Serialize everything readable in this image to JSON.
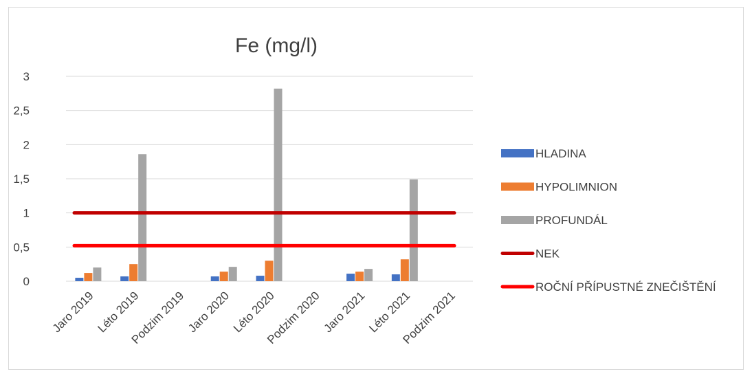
{
  "chart_data": {
    "type": "bar",
    "title": "Fe (mg/l)",
    "categories": [
      "Jaro 2019",
      "Léto 2019",
      "Podzim 2019",
      "Jaro 2020",
      "Léto 2020",
      "Podzim 2020",
      "Jaro 2021",
      "Léto 2021",
      "Podzim 2021"
    ],
    "series": [
      {
        "name": "HLADINA",
        "color": "#4472c4",
        "values": [
          0.05,
          0.07,
          null,
          0.07,
          0.08,
          null,
          0.11,
          0.1,
          null
        ]
      },
      {
        "name": "HYPOLIMNION",
        "color": "#ed7d31",
        "values": [
          0.12,
          0.25,
          null,
          0.14,
          0.3,
          null,
          0.14,
          0.32,
          null
        ]
      },
      {
        "name": "PROFUNDÁL",
        "color": "#a5a5a5",
        "values": [
          0.2,
          1.86,
          null,
          0.21,
          2.82,
          null,
          0.18,
          1.49,
          null
        ]
      }
    ],
    "reference_lines": [
      {
        "name": "NEK",
        "color": "#c00000",
        "value": 1.0
      },
      {
        "name": "ROČNÍ PŘÍPUSTNÉ ZNEČIŠTĚNÍ",
        "color": "#ff0000",
        "value": 0.52
      }
    ],
    "yticks": [
      "0",
      "0,5",
      "1",
      "1,5",
      "2",
      "2,5",
      "3"
    ],
    "ylim": [
      0,
      3
    ],
    "grid": true,
    "legend_position": "right"
  }
}
